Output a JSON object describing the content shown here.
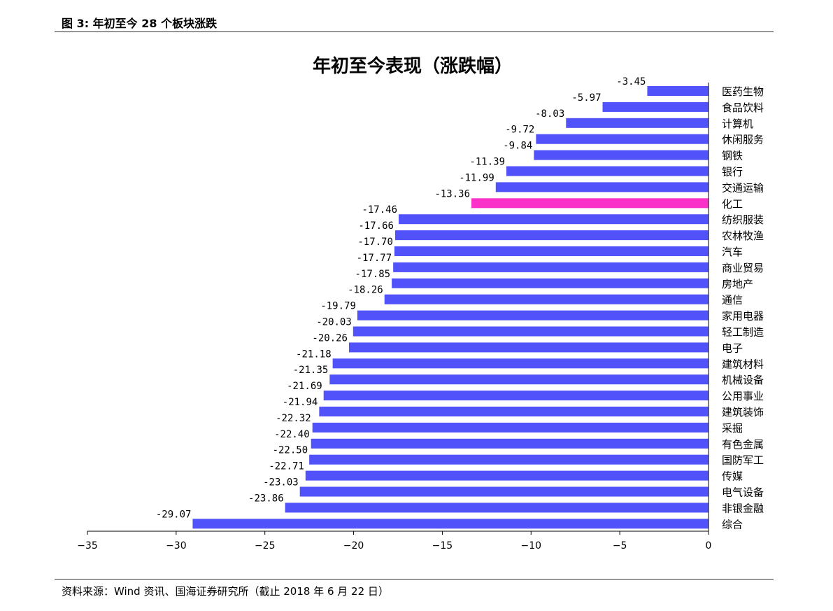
{
  "figure_label": "图 3:  年初至今 28 个板块涨跌",
  "source_note": "资料来源：Wind 资讯、国海证券研究所（截止 2018 年 6 月 22 日）",
  "chart_data": {
    "type": "bar",
    "orientation": "horizontal",
    "title": "年初至今表现（涨跌幅）",
    "xlabel": "",
    "ylabel": "",
    "xlim": [
      -35,
      0
    ],
    "xticks": [
      -35,
      -30,
      -25,
      -20,
      -15,
      -10,
      -5,
      0
    ],
    "grid": false,
    "legend": "none",
    "bar_color": "#5252fa",
    "highlight_color": "#fa32c8",
    "highlight_category": "化工",
    "categories": [
      "医药生物",
      "食品饮料",
      "计算机",
      "休闲服务",
      "钢铁",
      "银行",
      "交通运输",
      "化工",
      "纺织服装",
      "农林牧渔",
      "汽车",
      "商业贸易",
      "房地产",
      "通信",
      "家用电器",
      "轻工制造",
      "电子",
      "建筑材料",
      "机械设备",
      "公用事业",
      "建筑装饰",
      "采掘",
      "有色金属",
      "国防军工",
      "传媒",
      "电气设备",
      "非银金融",
      "综合"
    ],
    "values": [
      -3.45,
      -5.97,
      -8.03,
      -9.72,
      -9.84,
      -11.39,
      -11.99,
      -13.36,
      -17.46,
      -17.66,
      -17.7,
      -17.77,
      -17.85,
      -18.26,
      -19.79,
      -20.03,
      -20.26,
      -21.18,
      -21.35,
      -21.69,
      -21.94,
      -22.32,
      -22.4,
      -22.5,
      -22.71,
      -23.03,
      -23.86,
      -29.07
    ],
    "data_labels": [
      "-3.45",
      "-5.97",
      "-8.03",
      "-9.72",
      "-9.84",
      "-11.39",
      "-11.99",
      "-13.36",
      "-17.46",
      "-17.66",
      "-17.70",
      "-17.77",
      "-17.85",
      "-18.26",
      "-19.79",
      "-20.03",
      "-20.26",
      "-21.18",
      "-21.35",
      "-21.69",
      "-21.94",
      "-22.32",
      "-22.40",
      "-22.50",
      "-22.71",
      "-23.03",
      "-23.86",
      "-29.07"
    ]
  }
}
